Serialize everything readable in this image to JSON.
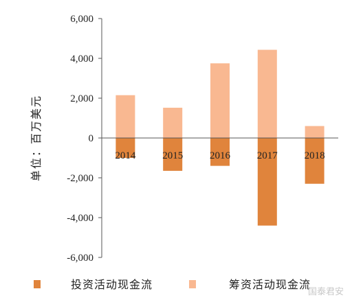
{
  "chart_data": {
    "type": "bar",
    "categories": [
      "2014",
      "2015",
      "2016",
      "2017",
      "2018"
    ],
    "series": [
      {
        "name": "投资活动现金流",
        "values": [
          -1000,
          -1650,
          -1400,
          -4400,
          -2300
        ],
        "color": "#e0843c"
      },
      {
        "name": "筹资活动现金流",
        "values": [
          2150,
          1520,
          3750,
          4430,
          600
        ],
        "color": "#f9b891"
      }
    ],
    "ylabel": "单位：百万美元",
    "ylim": [
      -6000,
      6000
    ],
    "yticks": [
      6000,
      4000,
      2000,
      0,
      -2000,
      -4000,
      -6000
    ],
    "ytick_labels": [
      "6,000",
      "4,000",
      "2,000",
      "0",
      "-2,000",
      "-4,000",
      "-6,000"
    ],
    "legend_position": "bottom",
    "grid": false
  },
  "watermark": "国泰君安"
}
